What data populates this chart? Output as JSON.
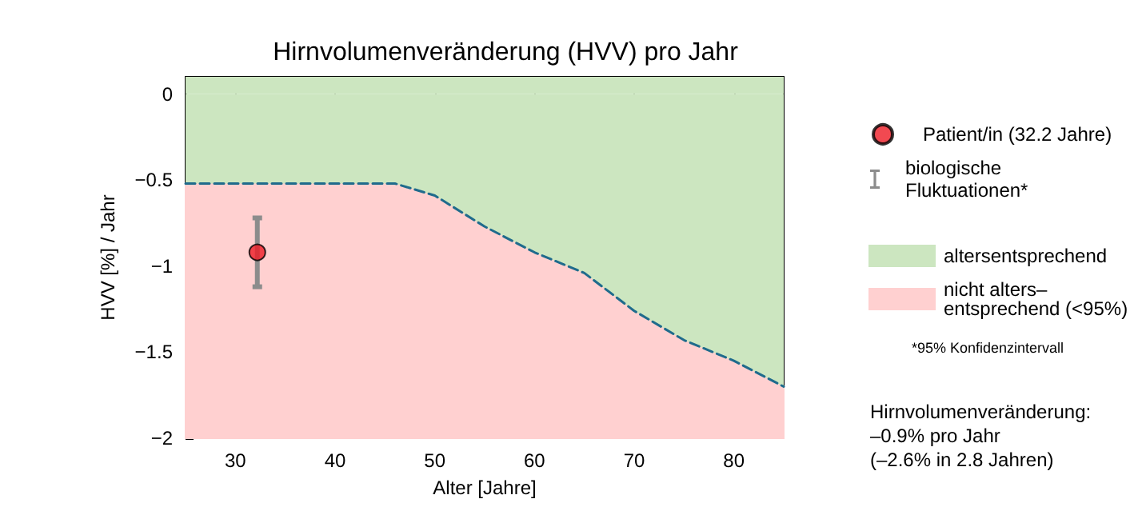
{
  "chart_data": {
    "type": "area",
    "stacked": true,
    "title": "Hirnvolumenveränderung (HVV) pro Jahr",
    "xlabel": "Alter [Jahre]",
    "ylabel": "HVV [%] / Jahr",
    "x": [
      25,
      46,
      50,
      55,
      60,
      65,
      70,
      75,
      80,
      85
    ],
    "series": [
      {
        "name": "altersentsprechend",
        "color": "#cce6c0",
        "line_style": "dashed",
        "values": [
          -0.52,
          -0.52,
          -0.59,
          -0.77,
          -0.92,
          -1.04,
          -1.26,
          -1.43,
          -1.55,
          -1.7
        ]
      },
      {
        "name": "nicht alters–\nentsprechend (<95%)",
        "color": "#ffd0d0",
        "values": [
          -1.48,
          -1.48,
          -1.41,
          -1.23,
          -1.08,
          -0.96,
          -0.74,
          -0.57,
          -0.45,
          -0.3
        ]
      },
      {
        "type": "scatter",
        "name": "Patient/in (32.2 Jahre)",
        "color": "#ee1c25",
        "marker": "circle",
        "x": [
          32.2
        ],
        "values": [
          -0.92
        ],
        "errors": [
          0.2
        ]
      }
    ],
    "bands": [
      {
        "axis": "y",
        "from": 0,
        "to": 0.1,
        "color": "#cce6c0"
      }
    ],
    "xlim": [
      25,
      85
    ],
    "xticks": [
      30,
      40,
      50,
      60,
      70,
      80
    ],
    "ylim": [
      -2,
      0.1
    ],
    "yticks": [
      0,
      -0.5,
      -1,
      -1.5,
      -2
    ],
    "grid": false,
    "legend": "right",
    "annotations": [
      "biologische\nFluktuationen*",
      "*95% Konfidenzintervall",
      "Hirnvolumenveränderung:\n–0.9% pro Jahr\n(–2.6% in 2.8 Jahren)"
    ]
  }
}
